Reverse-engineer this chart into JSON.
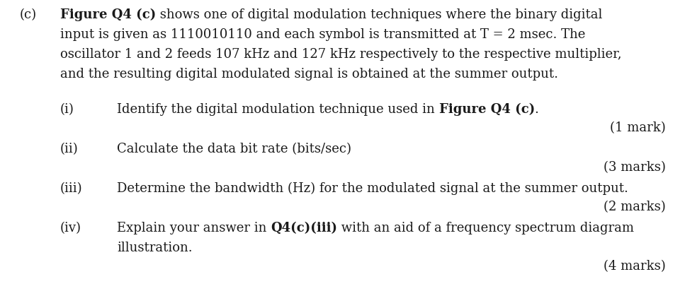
{
  "background_color": "#ffffff",
  "text_color": "#1a1a1a",
  "font_size": 13.0,
  "font_family": "DejaVu Serif",
  "label_c": "(c)",
  "para_line1_bold": "Figure Q4 (c)",
  "para_line1_normal": " shows one of digital modulation techniques where the binary digital",
  "para_lines": [
    "input is given as 1110010110 and each symbol is transmitted at T = 2 msec. The",
    "oscillator 1 and 2 feeds 107 kHz and 127 kHz respectively to the respective multiplier,",
    "and the resulting digital modulated signal is obtained at the summer output."
  ],
  "q1_normal": "Identify the digital modulation technique used in ",
  "q1_bold": "Figure Q4 (c)",
  "q1_end": ".",
  "q1_num": "(i)",
  "q1_mark": "(1 mark)",
  "q2_num": "(ii)",
  "q2_text": "Calculate the data bit rate (bits/sec)",
  "q2_mark": "(3 marks)",
  "q3_num": "(iii)",
  "q3_text": "Determine the bandwidth (Hz) for the modulated signal at the summer output.",
  "q3_mark": "(2 marks)",
  "q4_num": "(iv)",
  "q4_pre": "Explain your answer in ",
  "q4_bold": "Q4(c)(iii)",
  "q4_post": " with an aid of a frequency spectrum diagram",
  "q4_line2": "illustration.",
  "q4_mark": "(4 marks)"
}
